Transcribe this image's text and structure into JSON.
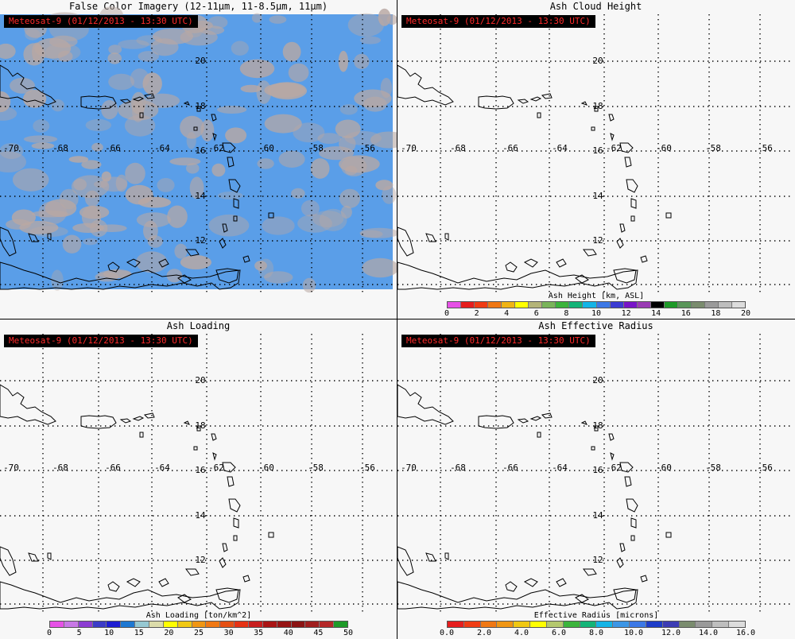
{
  "satellite_stamp": "Meteosat-9  (01/12/2013 - 13:30 UTC)",
  "lon_labels": [
    "-70",
    "-68",
    "-66",
    "-64",
    "-62",
    "-60",
    "-58",
    "-56"
  ],
  "lat_labels": [
    "20",
    "18",
    "16",
    "14",
    "12"
  ],
  "panels": [
    {
      "id": "false-color",
      "title": "False Color Imagery (12-11μm, 11-8.5μm, 11μm)",
      "imagery": true,
      "imagery_colors": {
        "ocean": "#5a9ee8",
        "cloud": "#b9a8a3"
      }
    },
    {
      "id": "ash-height",
      "title": "Ash Cloud Height",
      "colorbar": {
        "title": "Ash Height [km, ASL]",
        "colors": [
          "#e651e6",
          "#e61e1e",
          "#f03c14",
          "#f07814",
          "#f0b414",
          "#ffff00",
          "#b4b478",
          "#7ab45a",
          "#3cb43c",
          "#14b478",
          "#14b4e6",
          "#3c78e6",
          "#3c3cd2",
          "#7814c8",
          "#9a3cb4",
          "#000000",
          "#1e9a28",
          "#5a965a",
          "#7a8c6e",
          "#9a9a9a",
          "#bebebe",
          "#dcdcdc"
        ],
        "ticks": [
          "0",
          "2",
          "4",
          "6",
          "8",
          "10",
          "12",
          "14",
          "16",
          "18",
          "20"
        ]
      }
    },
    {
      "id": "ash-loading",
      "title": "Ash Loading",
      "colorbar": {
        "title": "Ash Loading [ton/km^2]",
        "colors": [
          "#e651e6",
          "#c878e6",
          "#8c3cd2",
          "#3c3cc8",
          "#1e1ed2",
          "#1e78d2",
          "#96c8d2",
          "#dcdcaa",
          "#ffff00",
          "#f0c814",
          "#f09614",
          "#f07814",
          "#e65014",
          "#e63214",
          "#c81e1e",
          "#aa1414",
          "#961414",
          "#8c1414",
          "#a01e1e",
          "#b42828",
          "#1e9a28"
        ],
        "ticks": [
          "0",
          "5",
          "10",
          "15",
          "20",
          "25",
          "30",
          "35",
          "40",
          "45",
          "50"
        ]
      }
    },
    {
      "id": "ash-radius",
      "title": "Ash Effective Radius",
      "colorbar": {
        "title": "Effective Radius [microns]",
        "colors": [
          "#e61e1e",
          "#f03c14",
          "#f07814",
          "#f09614",
          "#f0c814",
          "#ffff00",
          "#b4c86e",
          "#3cb43c",
          "#14b478",
          "#14b4e6",
          "#3c96e6",
          "#3c78e6",
          "#1e3cc8",
          "#3c3cb4",
          "#7a8c6e",
          "#9a9a9a",
          "#bebebe",
          "#dcdcdc"
        ],
        "ticks": [
          "0.0",
          "2.0",
          "4.0",
          "6.0",
          "8.0",
          "10.0",
          "12.0",
          "14.0",
          "16.0"
        ]
      }
    }
  ]
}
